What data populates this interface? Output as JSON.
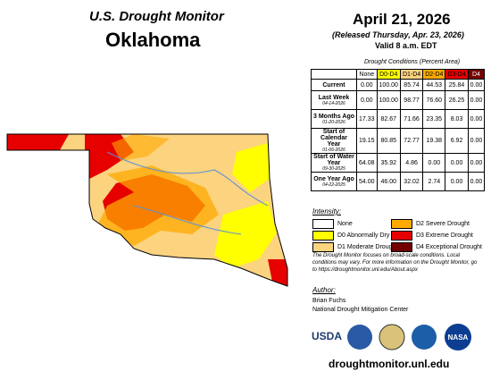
{
  "header": {
    "title": "U.S. Drought Monitor",
    "state": "Oklahoma",
    "date": "April 21, 2026",
    "released": "(Released Thursday, Apr. 23, 2026)",
    "valid": "Valid 8 a.m. EDT"
  },
  "table": {
    "caption": "Drought Conditions (Percent Area)",
    "columns": [
      "None",
      "D0-D4",
      "D1-D4",
      "D2-D4",
      "D3-D4",
      "D4"
    ],
    "rows": [
      {
        "label": "Current",
        "date": null,
        "values": [
          "0.00",
          "100.00",
          "85.74",
          "44.53",
          "25.84",
          "0.00"
        ]
      },
      {
        "label": "Last Week",
        "date": "04-14-2026",
        "values": [
          "0.00",
          "100.00",
          "98.77",
          "76.60",
          "26.25",
          "0.00"
        ]
      },
      {
        "label": "3 Months Ago",
        "date": "01-20-2026",
        "values": [
          "17.33",
          "82.67",
          "71.66",
          "23.35",
          "8.03",
          "0.00"
        ]
      },
      {
        "label": "Start of Calendar Year",
        "date": "01-06-2026",
        "values": [
          "19.15",
          "80.85",
          "72.77",
          "19.38",
          "6.92",
          "0.00"
        ]
      },
      {
        "label": "Start of Water Year",
        "date": "09-30-2025",
        "values": [
          "64.08",
          "35.92",
          "4.86",
          "0.00",
          "0.00",
          "0.00"
        ]
      },
      {
        "label": "One Year Ago",
        "date": "04-22-2025",
        "values": [
          "54.00",
          "46.00",
          "32.02",
          "2.74",
          "0.00",
          "0.00"
        ]
      }
    ]
  },
  "legend": {
    "title": "Intensity:",
    "items": [
      {
        "label": "None",
        "color": "#ffffff"
      },
      {
        "label": "D0 Abnormally Dry",
        "color": "#ffff00"
      },
      {
        "label": "D1 Moderate Drought",
        "color": "#fcd37f"
      },
      {
        "label": "D2 Severe Drought",
        "color": "#ffaa00"
      },
      {
        "label": "D3 Extreme Drought",
        "color": "#e60000"
      },
      {
        "label": "D4 Exceptional Drought",
        "color": "#730000"
      }
    ]
  },
  "note": "The Drought Monitor focuses on broad-scale conditions. Local conditions may vary. For more information on the Drought Monitor, go to https://droughtmonitor.unl.edu/About.aspx",
  "author": {
    "heading": "Author:",
    "name": "Brian Fuchs",
    "organization": "National Drought Mitigation Center"
  },
  "logos": [
    "USDA",
    "NASA"
  ],
  "url": "droughtmonitor.unl.edu"
}
